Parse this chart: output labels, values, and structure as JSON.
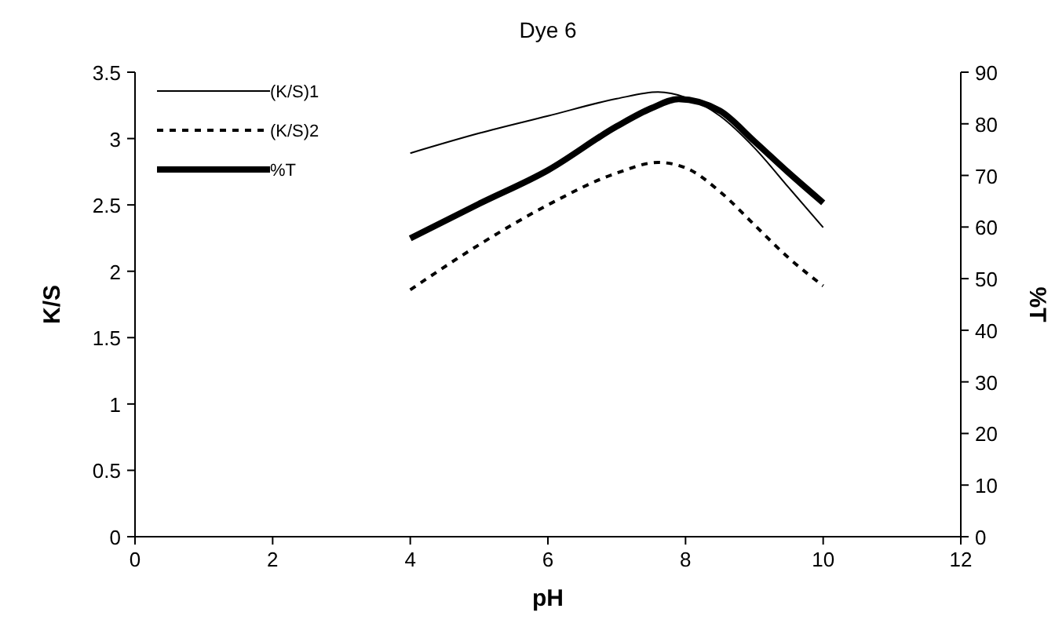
{
  "chart_data": {
    "type": "line",
    "title": "Dye 6",
    "xlabel": "pH",
    "ylabel": "K/S",
    "y2label": "%T",
    "xlim": [
      0,
      12
    ],
    "xticks": [
      0,
      2,
      4,
      6,
      8,
      10,
      12
    ],
    "ylim": [
      0,
      3.5
    ],
    "yticks": [
      0,
      0.5,
      1,
      1.5,
      2,
      2.5,
      3,
      3.5
    ],
    "y2lim": [
      0,
      90
    ],
    "y2ticks": [
      0,
      10,
      20,
      30,
      40,
      50,
      60,
      70,
      80,
      90
    ],
    "legend": "top left",
    "marker": "none",
    "grid": false,
    "series": [
      {
        "name": "(K/S)1",
        "color": "#000000",
        "line_style": "solid",
        "x": [
          4,
          5,
          6,
          7,
          7.6,
          8,
          8.5,
          9,
          9.5,
          10
        ],
        "values": [
          2.89,
          3.04,
          3.17,
          3.3,
          3.35,
          3.31,
          3.17,
          2.93,
          2.63,
          2.33
        ]
      },
      {
        "name": "(K/S)2",
        "color": "#000000",
        "line_style": "dashed",
        "x": [
          4,
          5,
          6,
          7,
          7.6,
          8,
          8.5,
          9,
          9.5,
          10
        ],
        "values": [
          1.86,
          2.2,
          2.5,
          2.74,
          2.82,
          2.78,
          2.6,
          2.35,
          2.1,
          1.89
        ]
      },
      {
        "name": "%T",
        "color": "#000000",
        "line_style": "solid",
        "axis": "y2",
        "x": [
          4,
          5,
          6,
          7,
          7.5,
          7.9,
          8.5,
          9,
          9.5,
          10
        ],
        "values": [
          57.8,
          64.5,
          71,
          79.5,
          83,
          84.8,
          82.5,
          76.6,
          70.5,
          64.7
        ]
      }
    ]
  }
}
